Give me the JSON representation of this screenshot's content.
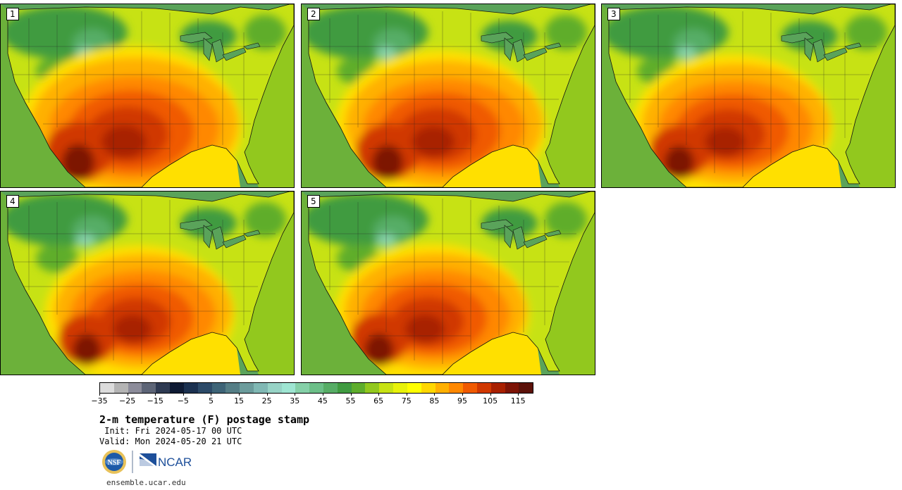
{
  "panels": [
    {
      "label": "1",
      "heat": 1.05
    },
    {
      "label": "2",
      "heat": 1.0
    },
    {
      "label": "3",
      "heat": 0.95
    },
    {
      "label": "4",
      "heat": 0.9
    },
    {
      "label": "5",
      "heat": 0.92
    }
  ],
  "colorbar": {
    "colors": [
      "#dcdcdc",
      "#b4b4b4",
      "#8c8c9a",
      "#5d6577",
      "#2e3a52",
      "#0e1a33",
      "#1b3150",
      "#2c4a68",
      "#3e6477",
      "#557e86",
      "#6c9c9c",
      "#80b8b4",
      "#97d3c6",
      "#9ee5d2",
      "#85d0a8",
      "#6cbf88",
      "#57ad66",
      "#409b41",
      "#5ead2c",
      "#92c81e",
      "#c7e214",
      "#e8f20a",
      "#ffff00",
      "#ffd700",
      "#ffb000",
      "#ff8800",
      "#f05a00",
      "#d03800",
      "#a82000",
      "#7d1406",
      "#5c120a"
    ],
    "min": -35,
    "max": 120,
    "ticks": [
      "−35",
      "−25",
      "−15",
      "−5",
      "5",
      "15",
      "25",
      "35",
      "45",
      "55",
      "65",
      "75",
      "85",
      "95",
      "105",
      "115"
    ]
  },
  "title": "2-m temperature (F) postage stamp",
  "init": " Init: Fri 2024-05-17 00 UTC",
  "valid": "Valid: Mon 2024-05-20 21 UTC",
  "logos": {
    "nsf": "NSF",
    "ncar": "NCAR"
  },
  "url": "ensemble.ucar.edu"
}
